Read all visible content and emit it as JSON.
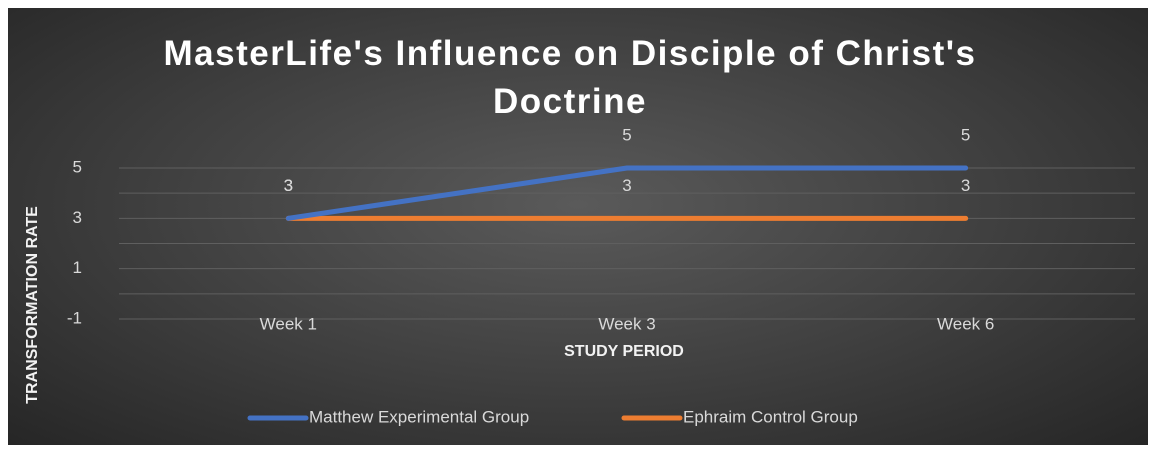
{
  "chart_data": {
    "type": "line",
    "title": "MasterLife's Influence on Disciple of Christ's Doctrine",
    "x_label": "STUDY PERIOD",
    "y_label": "TRANSFORMATION RATE",
    "categories": [
      "Week 1",
      "Week 3",
      "Week 6"
    ],
    "series": [
      {
        "name": "Matthew Experimental Group",
        "color": "#4472c4",
        "values": [
          3,
          5,
          5
        ]
      },
      {
        "name": "Ephraim Control Group",
        "color": "#ed7d31",
        "values": [
          3,
          3,
          3
        ]
      }
    ],
    "ylim": [
      -1,
      5
    ],
    "yticks": [
      -1,
      1,
      3,
      5
    ],
    "minor_yticks": [
      0,
      2,
      4
    ],
    "grid": true,
    "data_labels": true,
    "legend": "bottom"
  }
}
